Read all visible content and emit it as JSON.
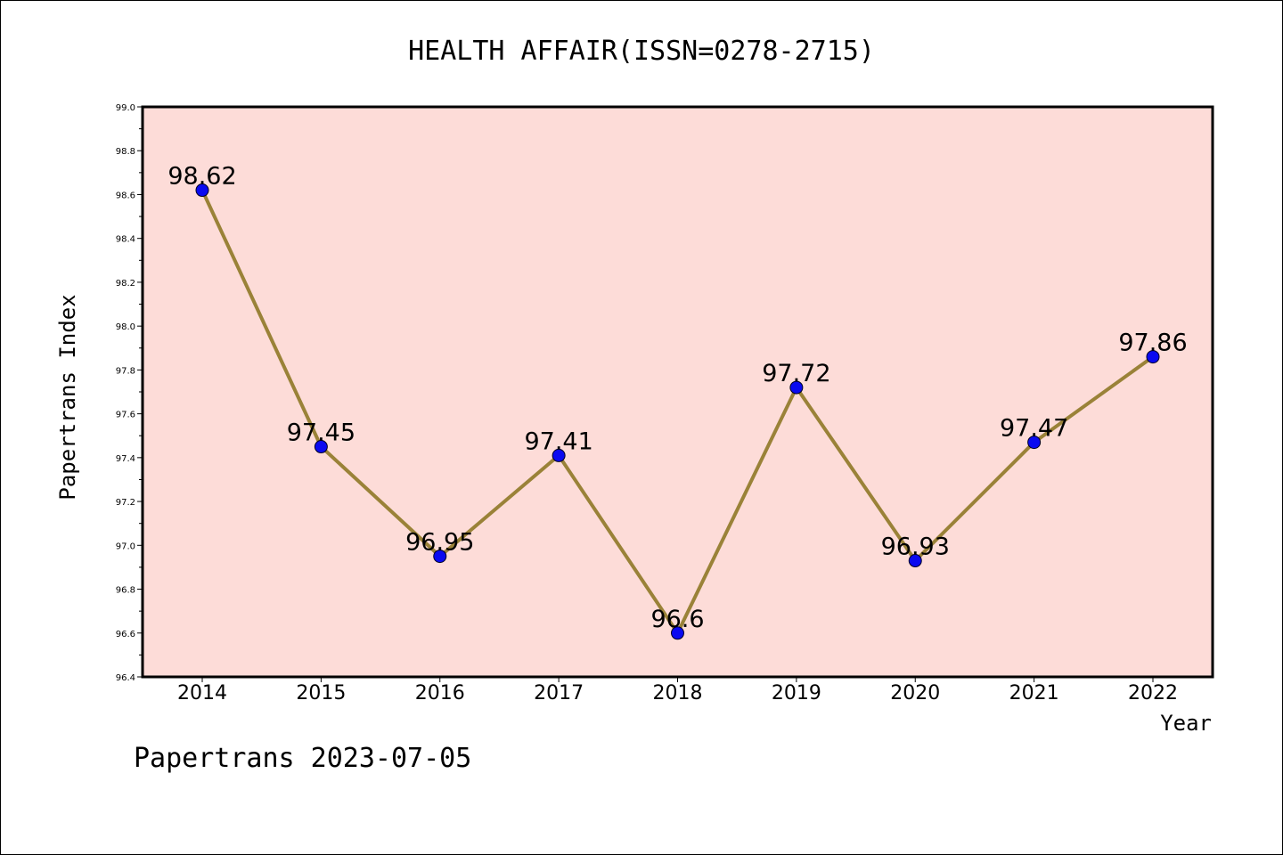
{
  "chart_data": {
    "type": "line",
    "title": "HEALTH AFFAIR(ISSN=0278-2715)",
    "xlabel": "Year",
    "ylabel": "Papertrans Index",
    "categories": [
      "2014",
      "2015",
      "2016",
      "2017",
      "2018",
      "2019",
      "2020",
      "2021",
      "2022"
    ],
    "series": [
      {
        "values": [
          98.62,
          97.45,
          96.95,
          97.41,
          96.6,
          97.72,
          96.93,
          97.47,
          97.86
        ],
        "labels": [
          "98.62",
          "97.45",
          "96.95",
          "97.41",
          "96.6",
          "97.72",
          "96.93",
          "97.47",
          "97.86"
        ]
      }
    ],
    "ylim": [
      96.4,
      99.0
    ],
    "yticks": [
      "96.4",
      "96.6",
      "96.8",
      "97.0",
      "97.2",
      "97.4",
      "97.6",
      "97.8",
      "98.0",
      "98.2",
      "98.4",
      "98.6",
      "98.8",
      "99.0"
    ],
    "grid": false,
    "colors": {
      "plot_background": "#fddcd8",
      "line": "#9a8238",
      "marker": "#0a0af0",
      "marker_edge": "#000022"
    }
  },
  "footer": {
    "text": "Papertrans 2023-07-05"
  }
}
